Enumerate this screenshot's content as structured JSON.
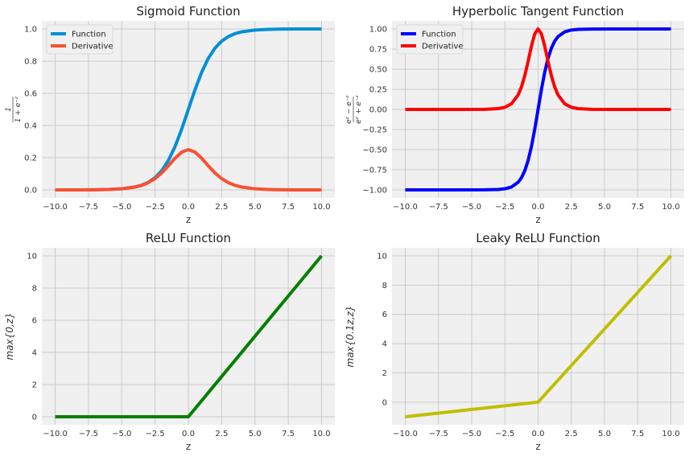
{
  "chart_data": [
    {
      "type": "line",
      "title": "Sigmoid Function",
      "xlabel": "z",
      "ylabel_num": "1",
      "ylabel_den": "1 + e⁻ᶻ",
      "xlim": [
        -11,
        11
      ],
      "ylim": [
        -0.05,
        1.05
      ],
      "xticks": [
        -10.0,
        -7.5,
        -5.0,
        -2.5,
        0.0,
        2.5,
        5.0,
        7.5,
        10.0
      ],
      "xtick_labels": [
        "−10.0",
        "−7.5",
        "−5.0",
        "−2.5",
        "0.0",
        "2.5",
        "5.0",
        "7.5",
        "10.0"
      ],
      "yticks": [
        0.0,
        0.2,
        0.4,
        0.6,
        0.8,
        1.0
      ],
      "ytick_labels": [
        "0.0",
        "0.2",
        "0.4",
        "0.6",
        "0.8",
        "1.0"
      ],
      "grid": true,
      "legend": "top-left",
      "series": [
        {
          "name": "Function",
          "color": "#008fd5",
          "x": [
            -10,
            -9,
            -8,
            -7,
            -6,
            -5,
            -4,
            -3.5,
            -3,
            -2.5,
            -2,
            -1.5,
            -1,
            -0.5,
            0,
            0.5,
            1,
            1.5,
            2,
            2.5,
            3,
            3.5,
            4,
            5,
            6,
            7,
            8,
            9,
            10
          ],
          "y": [
            0.0,
            0.0001,
            0.0003,
            0.0009,
            0.0025,
            0.0067,
            0.018,
            0.0293,
            0.0474,
            0.0759,
            0.1192,
            0.1824,
            0.2689,
            0.3775,
            0.5,
            0.6225,
            0.7311,
            0.8176,
            0.8808,
            0.9241,
            0.9526,
            0.9707,
            0.982,
            0.9933,
            0.9975,
            0.9991,
            0.9997,
            0.9999,
            1.0
          ]
        },
        {
          "name": "Derivative",
          "color": "#fc4f30",
          "x": [
            -10,
            -9,
            -8,
            -7,
            -6,
            -5,
            -4,
            -3.5,
            -3,
            -2.5,
            -2,
            -1.5,
            -1,
            -0.5,
            0,
            0.5,
            1,
            1.5,
            2,
            2.5,
            3,
            3.5,
            4,
            5,
            6,
            7,
            8,
            9,
            10
          ],
          "y": [
            0.0,
            0.0001,
            0.0003,
            0.0009,
            0.0025,
            0.0066,
            0.0177,
            0.0285,
            0.0452,
            0.0701,
            0.105,
            0.1491,
            0.1966,
            0.235,
            0.25,
            0.235,
            0.1966,
            0.1491,
            0.105,
            0.0701,
            0.0452,
            0.0285,
            0.0177,
            0.0066,
            0.0025,
            0.0009,
            0.0003,
            0.0001,
            0.0
          ]
        }
      ]
    },
    {
      "type": "line",
      "title": "Hyperbolic Tangent Function",
      "xlabel": "z",
      "ylabel_num": "eᶻ − e⁻ᶻ",
      "ylabel_den": "eᶻ + e⁻ᶻ",
      "xlim": [
        -11,
        11
      ],
      "ylim": [
        -1.1,
        1.1
      ],
      "xticks": [
        -10.0,
        -7.5,
        -5.0,
        -2.5,
        0.0,
        2.5,
        5.0,
        7.5,
        10.0
      ],
      "xtick_labels": [
        "−10.0",
        "−7.5",
        "−5.0",
        "−2.5",
        "0.0",
        "2.5",
        "5.0",
        "7.5",
        "10.0"
      ],
      "yticks": [
        -1.0,
        -0.75,
        -0.5,
        -0.25,
        0.0,
        0.25,
        0.5,
        0.75,
        1.0
      ],
      "ytick_labels": [
        "−1.00",
        "−0.75",
        "−0.50",
        "−0.25",
        "0.00",
        "0.25",
        "0.50",
        "0.75",
        "1.00"
      ],
      "grid": true,
      "legend": "top-left",
      "series": [
        {
          "name": "Function",
          "color": "#0000ff",
          "x": [
            -10,
            -6,
            -4,
            -3,
            -2.5,
            -2,
            -1.5,
            -1.25,
            -1,
            -0.75,
            -0.5,
            -0.25,
            0,
            0.25,
            0.5,
            0.75,
            1,
            1.25,
            1.5,
            2,
            2.5,
            3,
            4,
            6,
            10
          ],
          "y": [
            -1.0,
            -1.0,
            -0.9993,
            -0.9951,
            -0.9866,
            -0.964,
            -0.9051,
            -0.8483,
            -0.7616,
            -0.6351,
            -0.4621,
            -0.2449,
            0.0,
            0.2449,
            0.4621,
            0.6351,
            0.7616,
            0.8483,
            0.9051,
            0.964,
            0.9866,
            0.9951,
            0.9993,
            1.0,
            1.0
          ]
        },
        {
          "name": "Derivative",
          "color": "#ff0000",
          "x": [
            -10,
            -6,
            -4,
            -3,
            -2.5,
            -2,
            -1.5,
            -1.25,
            -1,
            -0.75,
            -0.5,
            -0.25,
            0,
            0.25,
            0.5,
            0.75,
            1,
            1.25,
            1.5,
            2,
            2.5,
            3,
            4,
            6,
            10
          ],
          "y": [
            0.0,
            0.0,
            0.0013,
            0.0099,
            0.0266,
            0.0707,
            0.1807,
            0.2805,
            0.42,
            0.5966,
            0.7864,
            0.94,
            1.0,
            0.94,
            0.7864,
            0.5966,
            0.42,
            0.2805,
            0.1807,
            0.0707,
            0.0266,
            0.0099,
            0.0013,
            0.0,
            0.0
          ]
        }
      ]
    },
    {
      "type": "line",
      "title": "ReLU Function",
      "xlabel": "z",
      "ylabel": "max{0,z}",
      "xlim": [
        -11,
        11
      ],
      "ylim": [
        -0.5,
        10.5
      ],
      "xticks": [
        -10.0,
        -7.5,
        -5.0,
        -2.5,
        0.0,
        2.5,
        5.0,
        7.5,
        10.0
      ],
      "xtick_labels": [
        "−10.0",
        "−7.5",
        "−5.0",
        "−2.5",
        "0.0",
        "2.5",
        "5.0",
        "7.5",
        "10.0"
      ],
      "yticks": [
        0,
        2,
        4,
        6,
        8,
        10
      ],
      "ytick_labels": [
        "0",
        "2",
        "4",
        "6",
        "8",
        "10"
      ],
      "grid": true,
      "series": [
        {
          "color": "#008000",
          "x": [
            -10,
            0,
            10
          ],
          "y": [
            0,
            0,
            10
          ]
        }
      ]
    },
    {
      "type": "line",
      "title": "Leaky ReLU Function",
      "xlabel": "z",
      "ylabel": "max{0.1z,z}",
      "xlim": [
        -11,
        11
      ],
      "ylim": [
        -1.55,
        10.55
      ],
      "xticks": [
        -10.0,
        -7.5,
        -5.0,
        -2.5,
        0.0,
        2.5,
        5.0,
        7.5,
        10.0
      ],
      "xtick_labels": [
        "−10.0",
        "−7.5",
        "−5.0",
        "−2.5",
        "0.0",
        "2.5",
        "5.0",
        "7.5",
        "10.0"
      ],
      "yticks": [
        0,
        2,
        4,
        6,
        8,
        10
      ],
      "ytick_labels": [
        "0",
        "2",
        "4",
        "6",
        "8",
        "10"
      ],
      "grid": true,
      "series": [
        {
          "color": "#bfbf00",
          "x": [
            -10,
            0,
            10
          ],
          "y": [
            -1,
            0,
            10
          ]
        }
      ]
    }
  ]
}
